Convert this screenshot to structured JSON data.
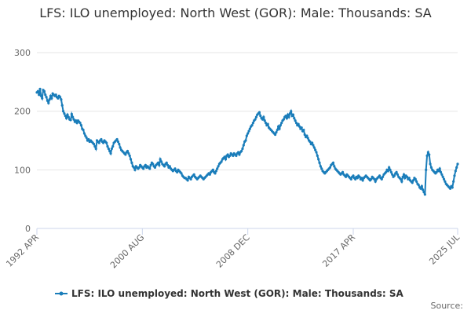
{
  "chart_data": {
    "type": "line",
    "title": "LFS: ILO unemployed: North West (GOR): Male: Thousands: SA",
    "source": "Source:",
    "categories": [
      "1992 APR",
      null,
      null,
      null,
      null,
      null,
      null,
      null,
      null,
      null,
      null,
      null,
      null,
      null,
      null,
      null,
      null,
      null,
      null,
      null,
      null,
      null,
      null,
      null,
      null,
      null,
      null,
      null,
      null,
      null,
      null,
      null,
      null,
      null,
      null,
      null,
      null,
      null,
      null,
      null,
      null,
      null,
      null,
      null,
      null,
      null,
      null,
      null,
      null,
      null,
      null,
      null,
      null,
      null,
      null,
      null,
      null,
      null,
      null,
      null,
      null,
      null,
      null,
      null,
      null,
      null,
      null,
      null,
      null,
      null,
      null,
      null,
      null,
      null,
      null,
      null,
      null,
      null,
      null,
      null,
      null,
      null,
      null,
      null,
      null,
      null,
      null,
      null,
      null,
      null,
      null,
      null,
      null,
      null,
      null,
      null,
      null,
      null,
      null,
      null,
      "2000 AUG",
      null,
      null,
      null,
      null,
      null,
      null,
      null,
      null,
      null,
      null,
      null,
      null,
      null,
      null,
      null,
      null,
      null,
      null,
      null,
      null,
      null,
      null,
      null,
      null,
      null,
      null,
      null,
      null,
      null,
      null,
      null,
      null,
      null,
      null,
      null,
      null,
      null,
      null,
      null,
      null,
      null,
      null,
      null,
      null,
      null,
      null,
      null,
      null,
      null,
      null,
      null,
      null,
      null,
      null,
      null,
      null,
      null,
      null,
      null,
      null,
      null,
      null,
      null,
      null,
      null,
      null,
      null,
      null,
      null,
      null,
      null,
      null,
      null,
      null,
      null,
      null,
      null,
      null,
      null,
      null,
      null,
      null,
      null,
      null,
      null,
      null,
      null,
      null,
      null,
      null,
      null,
      null,
      null,
      null,
      null,
      null,
      null,
      null,
      null,
      "2008 DEC",
      null,
      null,
      null,
      null,
      null,
      null,
      null,
      null,
      null,
      null,
      null,
      null,
      null,
      null,
      null,
      null,
      null,
      null,
      null,
      null,
      null,
      null,
      null,
      null,
      null,
      null,
      null,
      null,
      null,
      null,
      null,
      null,
      null,
      null,
      null,
      null,
      null,
      null,
      null,
      null,
      null,
      null,
      null,
      null,
      null,
      null,
      null,
      null,
      null,
      null,
      null,
      null,
      null,
      null,
      null,
      null,
      null,
      null,
      null,
      null,
      null,
      null,
      null,
      null,
      null,
      null,
      null,
      null,
      null,
      null,
      null,
      null,
      null,
      null,
      null,
      null,
      null,
      null,
      null,
      null,
      null,
      null,
      null,
      null,
      null,
      null,
      null,
      null,
      null,
      null,
      null,
      null,
      null,
      null,
      null,
      null,
      null,
      null,
      null,
      "2017 APR",
      null,
      null,
      null,
      null,
      null,
      null,
      null,
      null,
      null,
      null,
      null,
      null,
      null,
      null,
      null,
      null,
      null,
      null,
      null,
      null,
      null,
      null,
      null,
      null,
      null,
      null,
      null,
      null,
      null,
      null,
      null,
      null,
      null,
      null,
      null,
      null,
      null,
      null,
      null,
      null,
      null,
      null,
      null,
      null,
      null,
      null,
      null,
      null,
      null,
      null,
      null,
      null,
      null,
      null,
      null,
      null,
      null,
      null,
      null,
      null,
      null,
      null,
      null,
      null,
      null,
      null,
      null,
      null,
      null,
      null,
      null,
      null,
      null,
      null,
      null,
      null,
      null,
      null,
      null,
      null,
      null,
      null,
      null,
      null,
      null,
      null,
      null,
      null,
      null,
      null,
      null,
      null,
      null,
      null,
      null,
      null,
      null,
      null,
      "2025 JUL"
    ],
    "series": [
      {
        "name": "LFS: ILO unemployed: North West (GOR): Male: Thousands: SA",
        "color": "#1a7dba",
        "values": [
          232,
          234,
          228,
          238,
          226,
          222,
          236,
          234,
          228,
          224,
          218,
          214,
          220,
          226,
          222,
          230,
          228,
          226,
          228,
          224,
          222,
          226,
          224,
          220,
          210,
          200,
          196,
          192,
          188,
          194,
          190,
          186,
          185,
          195,
          190,
          186,
          182,
          184,
          180,
          184,
          182,
          180,
          176,
          170,
          168,
          162,
          158,
          155,
          150,
          152,
          148,
          150,
          148,
          146,
          144,
          140,
          136,
          150,
          148,
          146,
          150,
          152,
          148,
          146,
          150,
          148,
          146,
          140,
          136,
          132,
          128,
          136,
          140,
          146,
          148,
          150,
          152,
          148,
          144,
          138,
          134,
          132,
          130,
          128,
          126,
          130,
          132,
          128,
          124,
          118,
          112,
          106,
          104,
          100,
          106,
          104,
          102,
          104,
          108,
          106,
          104,
          102,
          106,
          108,
          104,
          106,
          104,
          102,
          108,
          112,
          110,
          106,
          104,
          108,
          110,
          112,
          108,
          118,
          114,
          110,
          108,
          106,
          110,
          112,
          108,
          104,
          106,
          102,
          100,
          98,
          100,
          102,
          98,
          96,
          100,
          98,
          96,
          94,
          90,
          88,
          86,
          86,
          84,
          82,
          88,
          86,
          84,
          88,
          90,
          92,
          88,
          86,
          84,
          86,
          88,
          90,
          88,
          86,
          84,
          86,
          88,
          90,
          92,
          94,
          92,
          96,
          98,
          100,
          96,
          94,
          98,
          102,
          106,
          110,
          112,
          114,
          118,
          120,
          122,
          118,
          124,
          126,
          122,
          124,
          128,
          126,
          124,
          128,
          126,
          124,
          128,
          130,
          126,
          130,
          132,
          136,
          142,
          148,
          150,
          158,
          162,
          166,
          170,
          174,
          176,
          180,
          184,
          186,
          190,
          194,
          196,
          198,
          192,
          188,
          186,
          190,
          184,
          180,
          176,
          178,
          172,
          170,
          168,
          166,
          164,
          162,
          160,
          164,
          168,
          174,
          170,
          176,
          180,
          184,
          186,
          190,
          192,
          188,
          194,
          190,
          196,
          200,
          192,
          194,
          188,
          184,
          180,
          176,
          178,
          174,
          170,
          172,
          166,
          168,
          160,
          156,
          158,
          154,
          150,
          148,
          144,
          146,
          142,
          138,
          134,
          130,
          124,
          118,
          112,
          106,
          102,
          98,
          96,
          94,
          96,
          98,
          100,
          102,
          104,
          108,
          110,
          112,
          106,
          102,
          100,
          98,
          96,
          94,
          92,
          94,
          96,
          92,
          90,
          88,
          92,
          90,
          88,
          86,
          84,
          88,
          90,
          86,
          84,
          88,
          86,
          90,
          88,
          84,
          86,
          82,
          86,
          88,
          90,
          88,
          86,
          84,
          82,
          84,
          88,
          86,
          84,
          80,
          84,
          86,
          88,
          90,
          86,
          84,
          88,
          92,
          94,
          96,
          100,
          98,
          104,
          100,
          96,
          92,
          88,
          90,
          94,
          96,
          92,
          88,
          86,
          84,
          80,
          88,
          92,
          86,
          90,
          88,
          84,
          86,
          82,
          80,
          78,
          82,
          86,
          84,
          80,
          76,
          74,
          70,
          68,
          72,
          66,
          62,
          58,
          100,
          124,
          130,
          126,
          110,
          104,
          100,
          98,
          96,
          94,
          96,
          100,
          98,
          102,
          96,
          92,
          88,
          84,
          80,
          76,
          74,
          72,
          70,
          68,
          72,
          70,
          80,
          90,
          98,
          104,
          110
        ]
      }
    ],
    "ylim": [
      0,
      300
    ],
    "yticks": [
      0,
      100,
      200,
      300
    ],
    "grid": true
  }
}
